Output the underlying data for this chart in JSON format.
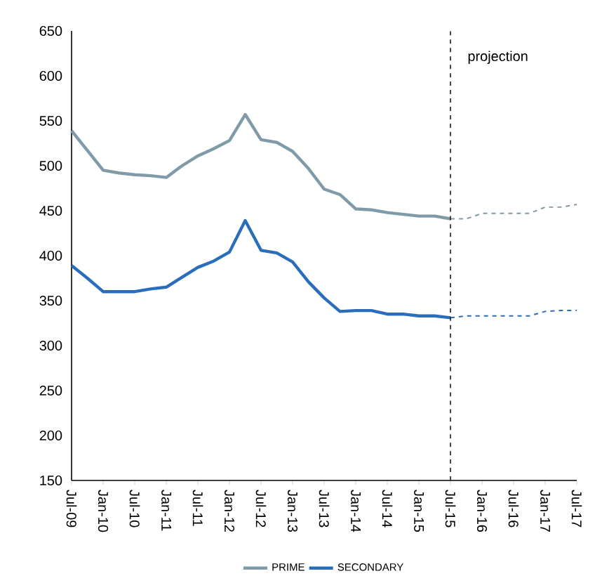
{
  "chart_data": {
    "type": "line",
    "series": [
      {
        "name": "PRIME",
        "color": "#7f9aa8",
        "line_style": "solid",
        "x": [
          "2009-07",
          "2009-10",
          "2010-01",
          "2010-04",
          "2010-07",
          "2010-10",
          "2011-01",
          "2011-04",
          "2011-07",
          "2011-10",
          "2012-01",
          "2012-04",
          "2012-07",
          "2012-10",
          "2013-01",
          "2013-04",
          "2013-07",
          "2013-10",
          "2014-01",
          "2014-04",
          "2014-07",
          "2014-10",
          "2015-01",
          "2015-04",
          "2015-07"
        ],
        "values": [
          539,
          517,
          495,
          492,
          490,
          489,
          487,
          500,
          511,
          519,
          528,
          557,
          529,
          526,
          516,
          497,
          474,
          468,
          452,
          451,
          448,
          446,
          444,
          444,
          441
        ]
      },
      {
        "color": "#7f9aa8",
        "line_style": "dashed",
        "x": [
          "2015-07",
          "2015-10",
          "2016-01",
          "2016-04",
          "2016-07",
          "2016-10",
          "2017-01",
          "2017-04",
          "2017-07"
        ],
        "values": [
          441,
          441,
          447,
          447,
          447,
          447,
          454,
          454,
          457
        ]
      },
      {
        "name": "SECONDARY",
        "color": "#2a6ebb",
        "line_style": "solid",
        "x": [
          "2009-07",
          "2009-10",
          "2010-01",
          "2010-04",
          "2010-07",
          "2010-10",
          "2011-01",
          "2011-04",
          "2011-07",
          "2011-10",
          "2012-01",
          "2012-04",
          "2012-07",
          "2012-10",
          "2013-01",
          "2013-04",
          "2013-07",
          "2013-10",
          "2014-01",
          "2014-04",
          "2014-07",
          "2014-10",
          "2015-01",
          "2015-04",
          "2015-07"
        ],
        "values": [
          389,
          375,
          360,
          360,
          360,
          363,
          365,
          376,
          387,
          394,
          404,
          439,
          406,
          403,
          393,
          371,
          353,
          338,
          339,
          339,
          335,
          335,
          333,
          333,
          331
        ]
      },
      {
        "color": "#2a6ebb",
        "line_style": "dashed",
        "x": [
          "2015-07",
          "2015-10",
          "2016-01",
          "2016-04",
          "2016-07",
          "2016-10",
          "2017-01",
          "2017-04",
          "2017-07"
        ],
        "values": [
          331,
          333,
          333,
          333,
          333,
          333,
          338,
          339,
          339
        ]
      }
    ],
    "xlim": [
      "2009-07",
      "2017-07"
    ],
    "xticks": [
      {
        "value": "2009-07",
        "label": "Jul-09"
      },
      {
        "value": "2010-01",
        "label": "Jan-10"
      },
      {
        "value": "2010-07",
        "label": "Jul-10"
      },
      {
        "value": "2011-01",
        "label": "Jan-11"
      },
      {
        "value": "2011-07",
        "label": "Jul-11"
      },
      {
        "value": "2012-01",
        "label": "Jan-12"
      },
      {
        "value": "2012-07",
        "label": "Jul-12"
      },
      {
        "value": "2013-01",
        "label": "Jan-13"
      },
      {
        "value": "2013-07",
        "label": "Jul-13"
      },
      {
        "value": "2014-01",
        "label": "Jan-14"
      },
      {
        "value": "2014-07",
        "label": "Jul-14"
      },
      {
        "value": "2015-01",
        "label": "Jan-15"
      },
      {
        "value": "2015-07",
        "label": "Jul-15"
      },
      {
        "value": "2016-01",
        "label": "Jan-16"
      },
      {
        "value": "2016-07",
        "label": "Jul-16"
      },
      {
        "value": "2017-01",
        "label": "Jan-17"
      },
      {
        "value": "2017-07",
        "label": "Jul-17"
      }
    ],
    "ylim": [
      150,
      650
    ],
    "yticks": [
      150,
      200,
      250,
      300,
      350,
      400,
      450,
      500,
      550,
      600,
      650
    ],
    "ref_lines": [
      {
        "axis": "x",
        "value": "2015-07",
        "label": "projection",
        "color": "#333333",
        "line_style": "dashed"
      }
    ],
    "legend": "bottom"
  }
}
